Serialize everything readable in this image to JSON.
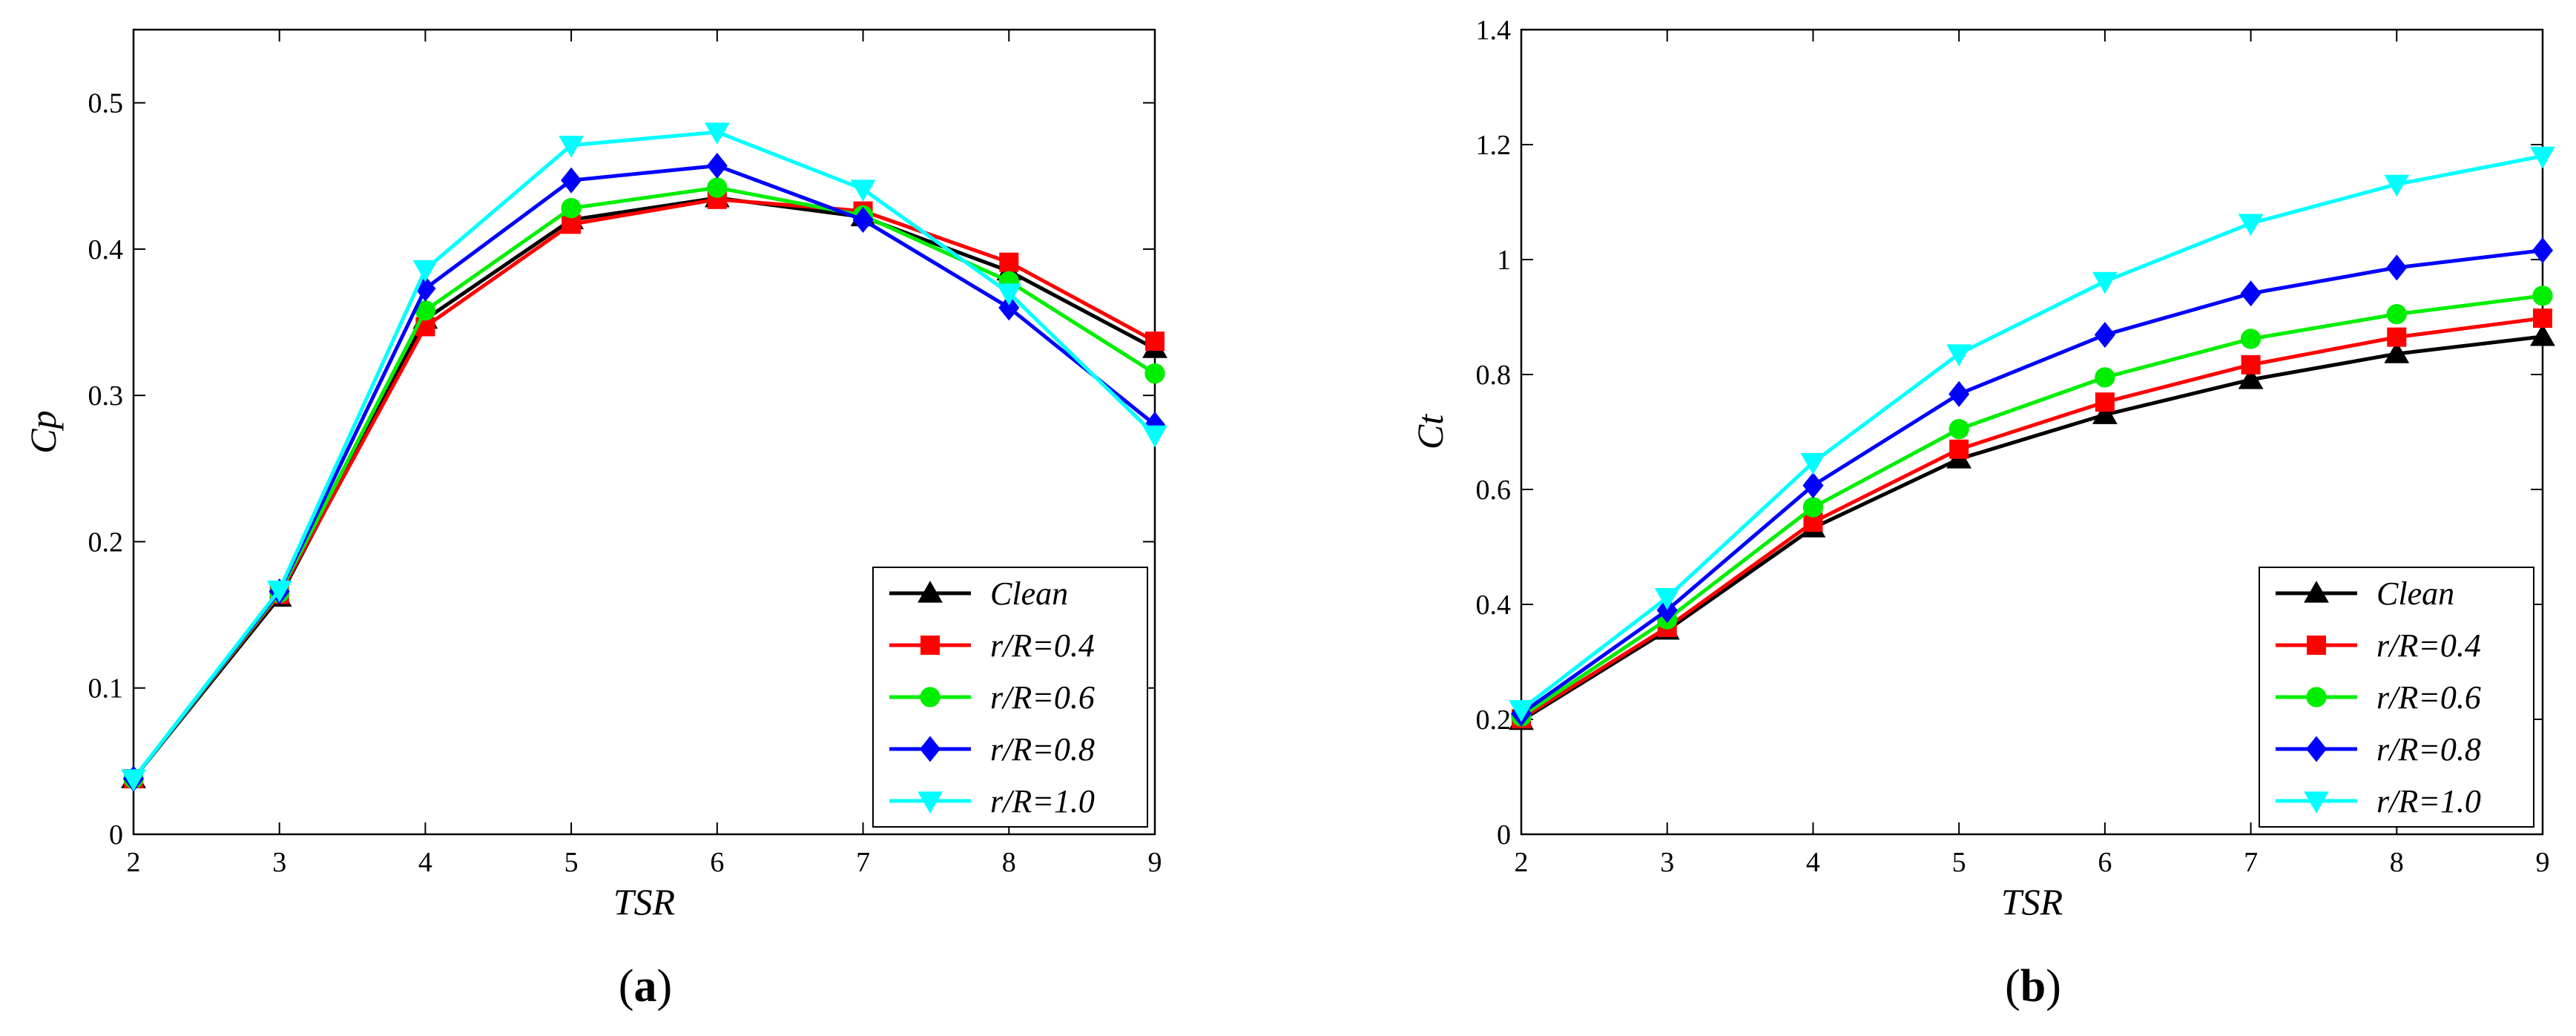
{
  "chart_data": [
    {
      "type": "line",
      "panel": "(a)",
      "panel_letter": "a",
      "xlabel": "TSR",
      "ylabel": "Cp",
      "xlim": [
        2,
        9
      ],
      "ylim": [
        0,
        0.55
      ],
      "x_ticks": [
        2,
        3,
        4,
        5,
        6,
        7,
        8,
        9
      ],
      "x_tick_labels": [
        "2",
        "3",
        "4",
        "5",
        "6",
        "7",
        "8",
        "9"
      ],
      "y_ticks": [
        0,
        0.1,
        0.2,
        0.3,
        0.4,
        0.5
      ],
      "y_tick_labels": [
        "0",
        "0.1",
        "0.2",
        "0.3",
        "0.4",
        "0.5"
      ],
      "grid": false,
      "legend_position": "bottom-right",
      "x": [
        2,
        3,
        4,
        5,
        6,
        7,
        8,
        9
      ],
      "series": [
        {
          "name": "Clean",
          "color": "#000000",
          "marker": "triangle-up",
          "values": [
            0.038,
            0.162,
            0.352,
            0.42,
            0.435,
            0.422,
            0.385,
            0.332
          ]
        },
        {
          "name": "r/R=0.4",
          "color": "#ff0000",
          "marker": "square",
          "values": [
            0.038,
            0.164,
            0.347,
            0.417,
            0.434,
            0.426,
            0.391,
            0.337
          ]
        },
        {
          "name": "r/R=0.6",
          "color": "#00ee00",
          "marker": "circle",
          "values": [
            0.038,
            0.165,
            0.358,
            0.428,
            0.442,
            0.423,
            0.378,
            0.315
          ]
        },
        {
          "name": "r/R=0.8",
          "color": "#0000ff",
          "marker": "diamond",
          "values": [
            0.038,
            0.166,
            0.373,
            0.447,
            0.457,
            0.42,
            0.36,
            0.28
          ]
        },
        {
          "name": "r/R=1.0",
          "color": "#00ffff",
          "marker": "triangle-down",
          "values": [
            0.038,
            0.167,
            0.386,
            0.471,
            0.48,
            0.441,
            0.37,
            0.273
          ]
        }
      ]
    },
    {
      "type": "line",
      "panel": "(b)",
      "panel_letter": "b",
      "xlabel": "TSR",
      "ylabel": "Ct",
      "xlim": [
        2,
        9
      ],
      "ylim": [
        0,
        1.4
      ],
      "x_ticks": [
        2,
        3,
        4,
        5,
        6,
        7,
        8,
        9
      ],
      "x_tick_labels": [
        "2",
        "3",
        "4",
        "5",
        "6",
        "7",
        "8",
        "9"
      ],
      "y_ticks": [
        0,
        0.2,
        0.4,
        0.6,
        0.8,
        1,
        1.2,
        1.4
      ],
      "y_tick_labels": [
        "0",
        "0.2",
        "0.4",
        "0.6",
        "0.8",
        "1",
        "1.2",
        "1.4"
      ],
      "grid": false,
      "legend_position": "bottom-right",
      "x": [
        2,
        3,
        4,
        5,
        6,
        7,
        8,
        9
      ],
      "series": [
        {
          "name": "Clean",
          "color": "#000000",
          "marker": "triangle-up",
          "values": [
            0.198,
            0.355,
            0.533,
            0.653,
            0.73,
            0.791,
            0.836,
            0.866
          ]
        },
        {
          "name": "r/R=0.4",
          "color": "#ff0000",
          "marker": "square",
          "values": [
            0.201,
            0.36,
            0.543,
            0.67,
            0.752,
            0.817,
            0.865,
            0.898
          ]
        },
        {
          "name": "r/R=0.6",
          "color": "#00ee00",
          "marker": "circle",
          "values": [
            0.205,
            0.374,
            0.569,
            0.705,
            0.795,
            0.862,
            0.905,
            0.937
          ]
        },
        {
          "name": "r/R=0.8",
          "color": "#0000ff",
          "marker": "diamond",
          "values": [
            0.21,
            0.39,
            0.607,
            0.766,
            0.869,
            0.941,
            0.986,
            1.016
          ]
        },
        {
          "name": "r/R=1.0",
          "color": "#00ffff",
          "marker": "triangle-down",
          "values": [
            0.217,
            0.412,
            0.647,
            0.836,
            0.962,
            1.063,
            1.131,
            1.18
          ]
        }
      ]
    }
  ]
}
